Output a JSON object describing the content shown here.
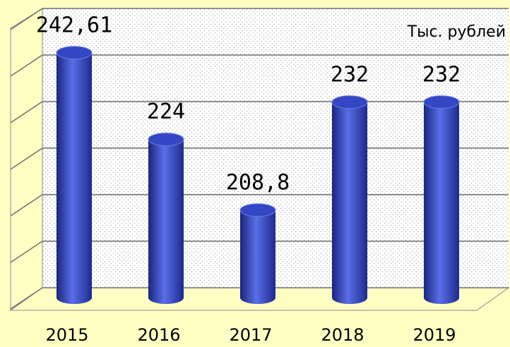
{
  "chart_data": {
    "type": "bar",
    "subtitle": "Тыс. рублей",
    "categories": [
      "2015",
      "2016",
      "2017",
      "2018",
      "2019"
    ],
    "values": [
      242.61,
      224,
      208.8,
      232,
      232
    ],
    "value_labels": [
      "242,61",
      "224",
      "208,8",
      "232",
      "232"
    ],
    "color": "#3347c4",
    "ylim": [
      190,
      250
    ],
    "yticks": [
      190,
      200,
      210,
      220,
      230,
      240,
      250
    ],
    "grid": true
  }
}
